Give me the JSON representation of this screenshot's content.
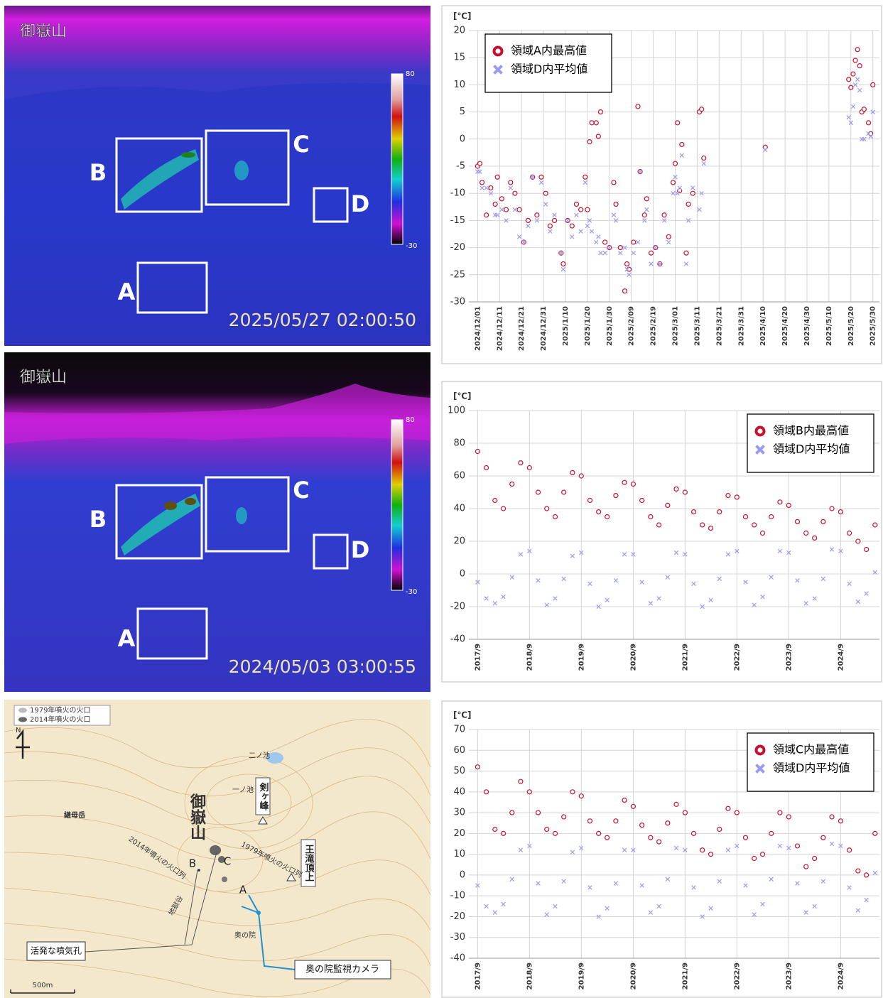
{
  "thermal_images": [
    {
      "title": "御嶽山",
      "timestamp": "2025/05/27 02:00:50",
      "regions": [
        "A",
        "B",
        "C",
        "D"
      ],
      "colorbar": [
        "80",
        "-30"
      ]
    },
    {
      "title": "御嶽山",
      "timestamp": "2024/05/03 03:00:55",
      "regions": [
        "A",
        "B",
        "C",
        "D"
      ],
      "colorbar": [
        "80",
        "-30"
      ]
    }
  ],
  "map": {
    "legend": [
      "1979年噴火の火口",
      "2014年噴火の火口"
    ],
    "north": "N",
    "summit": "御嶽山",
    "peak": "剣ヶ峰",
    "pond1": "一ノ池",
    "pond2": "二ノ池",
    "otaki": "王滝頂上",
    "mamahaha": "継母岳",
    "row1979": "1979年噴火の火口列",
    "row2014": "2014年噴火の火口列",
    "points": [
      "B",
      "C",
      "A"
    ],
    "vent": "活発な噴気孔",
    "camera": "奥の院監視カメラ",
    "okunoin": "奥の院",
    "jigokudani": "地獄谷",
    "scale": "500m"
  },
  "chart_data": [
    {
      "type": "scatter",
      "y_label": "[℃]",
      "legend": "upper left",
      "grid": true,
      "x": [
        "2024/12/1",
        "2024/12/2",
        "2024/12/3",
        "2024/12/5",
        "2024/12/7",
        "2024/12/9",
        "2024/12/10",
        "2024/12/12",
        "2024/12/14",
        "2024/12/16",
        "2024/12/18",
        "2024/12/20",
        "2024/12/22",
        "2024/12/24",
        "2024/12/26",
        "2024/12/28",
        "2024/12/30",
        "2025/1/1",
        "2025/1/3",
        "2025/1/5",
        "2025/1/8",
        "2025/1/9",
        "2025/1/11",
        "2025/1/13",
        "2025/1/15",
        "2025/1/17",
        "2025/1/19",
        "2025/1/20",
        "2025/1/21",
        "2025/1/22",
        "2025/1/24",
        "2025/1/25",
        "2025/1/26",
        "2025/1/28",
        "2025/1/30",
        "2025/2/1",
        "2025/2/2",
        "2025/2/4",
        "2025/2/6",
        "2025/2/7",
        "2025/2/8",
        "2025/2/10",
        "2025/2/12",
        "2025/2/13",
        "2025/2/15",
        "2025/2/16",
        "2025/2/18",
        "2025/2/20",
        "2025/2/22",
        "2025/2/24",
        "2025/2/26",
        "2025/2/28",
        "2025/3/1",
        "2025/3/2",
        "2025/3/3",
        "2025/3/4",
        "2025/3/6",
        "2025/3/7",
        "2025/3/9",
        "2025/3/12",
        "2025/3/13",
        "2025/3/14",
        "2025/4/11",
        "2025/5/19",
        "2025/5/20",
        "2025/5/21",
        "2025/5/22",
        "2025/5/23",
        "2025/5/24",
        "2025/5/25",
        "2025/5/26",
        "2025/5/28",
        "2025/5/29",
        "2025/5/30"
      ],
      "series": [
        {
          "name": "領域A内最高値",
          "color": "#c8102e",
          "marker": "circle",
          "values": [
            -5,
            -4.5,
            -8,
            -14,
            -9,
            -12,
            -7,
            -11,
            -13,
            -8,
            -10,
            -13,
            -19,
            -15,
            -7,
            -14,
            -7,
            -10,
            -16,
            -15,
            -21,
            -23,
            -15,
            -16,
            -12,
            -13,
            -7,
            -13,
            -0.5,
            3,
            3,
            0.5,
            5,
            -19,
            -20,
            -8,
            -12,
            -20,
            -28,
            -23,
            -24,
            -19,
            6,
            -6,
            -14,
            -11,
            -21,
            -20,
            -23,
            -14,
            -18,
            -8,
            -4.5,
            3,
            -9.5,
            -1,
            -21,
            -12,
            -10,
            5,
            5.5,
            -3.5,
            -1.5,
            11,
            9.5,
            12,
            14.5,
            16.5,
            13.5,
            5,
            5.5,
            3,
            1,
            10
          ]
        },
        {
          "name": "領域D内平均値",
          "color": "#9a9af0",
          "marker": "cross",
          "values": [
            -6,
            -6,
            -9,
            -9,
            -10,
            -14,
            -14,
            -13,
            -15,
            -9,
            -13,
            -18,
            -19,
            -16,
            -7,
            -15,
            -8,
            -12,
            -17,
            -14,
            -21,
            -24,
            -15,
            -18,
            -14,
            -17,
            -8,
            -16,
            -15,
            -17,
            -19,
            -18,
            -21,
            -21,
            -20,
            -14,
            -15,
            -21,
            -20,
            -24,
            -25,
            -21,
            -19,
            -6,
            -15,
            -13,
            -23,
            -20,
            -23,
            -15,
            -19,
            -10,
            -7,
            -10,
            -9,
            -3,
            -23,
            -15,
            -9,
            -13,
            -10,
            -4.5,
            -2,
            4,
            3,
            6,
            10,
            11,
            9,
            0,
            0,
            1,
            0.5,
            5
          ]
        }
      ],
      "xlim": [
        "2024/11/27",
        "2025/6/2"
      ],
      "xticks": [
        "2024/12/01",
        "2024/12/11",
        "2024/12/21",
        "2024/12/31",
        "2025/1/10",
        "2025/1/20",
        "2025/1/30",
        "2025/2/09",
        "2025/2/19",
        "2025/3/01",
        "2025/3/11",
        "2025/3/21",
        "2025/3/31",
        "2025/4/10",
        "2025/4/20",
        "2025/4/30",
        "2025/5/10",
        "2025/5/20",
        "2025/5/30"
      ],
      "ylim": [
        -30,
        20
      ],
      "yticks": [
        -30,
        -25,
        -20,
        -15,
        -10,
        -5,
        0,
        5,
        10,
        15,
        20
      ]
    },
    {
      "type": "scatter",
      "y_label": "[℃]",
      "legend": "upper right",
      "grid": true,
      "x": [
        "2017/9",
        "2017/11",
        "2018/1",
        "2018/3",
        "2018/5",
        "2018/7",
        "2018/9",
        "2018/11",
        "2019/1",
        "2019/3",
        "2019/5",
        "2019/7",
        "2019/9",
        "2019/11",
        "2020/1",
        "2020/3",
        "2020/5",
        "2020/7",
        "2020/9",
        "2020/11",
        "2021/1",
        "2021/3",
        "2021/5",
        "2021/7",
        "2021/9",
        "2021/11",
        "2022/1",
        "2022/3",
        "2022/5",
        "2022/7",
        "2022/9",
        "2022/11",
        "2023/1",
        "2023/3",
        "2023/5",
        "2023/7",
        "2023/9",
        "2023/11",
        "2024/1",
        "2024/3",
        "2024/5",
        "2024/7",
        "2024/9",
        "2024/11",
        "2025/1",
        "2025/3",
        "2025/5"
      ],
      "series": [
        {
          "name": "領域B内最高値",
          "color": "#c8102e",
          "marker": "circle",
          "values": [
            75,
            65,
            45,
            40,
            55,
            68,
            65,
            50,
            40,
            35,
            50,
            62,
            60,
            45,
            38,
            35,
            48,
            56,
            55,
            45,
            35,
            30,
            42,
            52,
            50,
            38,
            30,
            28,
            38,
            48,
            47,
            35,
            30,
            25,
            35,
            44,
            42,
            32,
            25,
            22,
            32,
            40,
            38,
            25,
            20,
            15,
            30
          ]
        },
        {
          "name": "領域D内平均値",
          "color": "#9a9af0",
          "marker": "cross",
          "values": [
            -5,
            -15,
            -18,
            -14,
            -2,
            12,
            14,
            -4,
            -19,
            -15,
            -3,
            11,
            13,
            -6,
            -20,
            -16,
            -4,
            12,
            12,
            -5,
            -18,
            -15,
            -2,
            13,
            12,
            -6,
            -20,
            -16,
            -3,
            12,
            14,
            -5,
            -19,
            -14,
            -2,
            14,
            13,
            -4,
            -18,
            -15,
            -3,
            15,
            14,
            -6,
            -17,
            -12,
            1
          ]
        }
      ],
      "xlim": [
        "2017/7",
        "2025/6"
      ],
      "xticks": [
        "2017/9",
        "2018/9",
        "2019/9",
        "2020/9",
        "2021/9",
        "2022/9",
        "2023/9",
        "2024/9"
      ],
      "ylim": [
        -40,
        100
      ],
      "yticks": [
        -40,
        -20,
        0,
        20,
        40,
        60,
        80,
        100
      ]
    },
    {
      "type": "scatter",
      "y_label": "[℃]",
      "legend": "upper right",
      "grid": true,
      "x": [
        "2017/9",
        "2017/11",
        "2018/1",
        "2018/3",
        "2018/5",
        "2018/7",
        "2018/9",
        "2018/11",
        "2019/1",
        "2019/3",
        "2019/5",
        "2019/7",
        "2019/9",
        "2019/11",
        "2020/1",
        "2020/3",
        "2020/5",
        "2020/7",
        "2020/9",
        "2020/11",
        "2021/1",
        "2021/3",
        "2021/5",
        "2021/7",
        "2021/9",
        "2021/11",
        "2022/1",
        "2022/3",
        "2022/5",
        "2022/7",
        "2022/9",
        "2022/11",
        "2023/1",
        "2023/3",
        "2023/5",
        "2023/7",
        "2023/9",
        "2023/11",
        "2024/1",
        "2024/3",
        "2024/5",
        "2024/7",
        "2024/9",
        "2024/11",
        "2025/1",
        "2025/3",
        "2025/5"
      ],
      "series": [
        {
          "name": "領域C内最高値",
          "color": "#c8102e",
          "marker": "circle",
          "values": [
            52,
            40,
            22,
            20,
            30,
            45,
            40,
            30,
            22,
            20,
            28,
            40,
            38,
            26,
            20,
            18,
            26,
            36,
            33,
            24,
            18,
            16,
            25,
            34,
            30,
            20,
            12,
            10,
            22,
            32,
            30,
            18,
            8,
            10,
            20,
            30,
            28,
            14,
            4,
            8,
            18,
            28,
            26,
            12,
            2,
            0,
            20
          ]
        },
        {
          "name": "領域D内平均値",
          "color": "#9a9af0",
          "marker": "cross",
          "values": [
            -5,
            -15,
            -18,
            -14,
            -2,
            12,
            14,
            -4,
            -19,
            -15,
            -3,
            11,
            13,
            -6,
            -20,
            -16,
            -4,
            12,
            12,
            -5,
            -18,
            -15,
            -2,
            13,
            12,
            -6,
            -20,
            -16,
            -3,
            12,
            14,
            -5,
            -19,
            -14,
            -2,
            14,
            13,
            -4,
            -18,
            -15,
            -3,
            15,
            14,
            -6,
            -17,
            -12,
            1
          ]
        }
      ],
      "xlim": [
        "2017/7",
        "2025/6"
      ],
      "xticks": [
        "2017/9",
        "2018/9",
        "2019/9",
        "2020/9",
        "2021/9",
        "2022/9",
        "2023/9",
        "2024/9"
      ],
      "ylim": [
        -40,
        70
      ],
      "yticks": [
        -40,
        -30,
        -20,
        -10,
        0,
        10,
        20,
        30,
        40,
        50,
        60,
        70
      ]
    }
  ]
}
